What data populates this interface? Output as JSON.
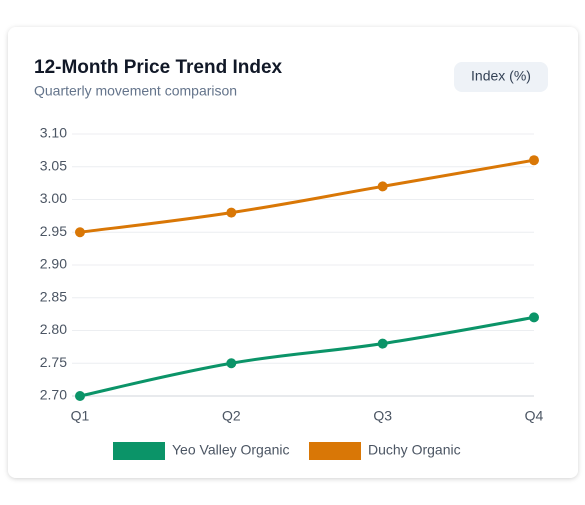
{
  "chart_data": {
    "type": "line",
    "title": "12-Month Price Trend Index",
    "subtitle": "Quarterly movement comparison",
    "badge": "Index (%)",
    "categories": [
      "Q1",
      "Q2",
      "Q3",
      "Q4"
    ],
    "series": [
      {
        "name": "Yeo Valley Organic",
        "color": "#0b9468",
        "values": [
          2.7,
          2.75,
          2.78,
          2.82
        ]
      },
      {
        "name": "Duchy Organic",
        "color": "#d97706",
        "values": [
          2.95,
          2.98,
          3.02,
          3.06
        ]
      }
    ],
    "ylim": [
      2.7,
      3.1
    ],
    "yticks": [
      {
        "value": 2.7,
        "label": "2.70"
      },
      2.75,
      {
        "value": 2.8,
        "label": "2.80"
      },
      2.85,
      {
        "value": 2.9,
        "label": "2.90"
      },
      2.95,
      {
        "value": 3,
        "label": "3.00"
      },
      3.05,
      {
        "value": 3.1,
        "label": "3.10"
      }
    ],
    "grid": true
  }
}
